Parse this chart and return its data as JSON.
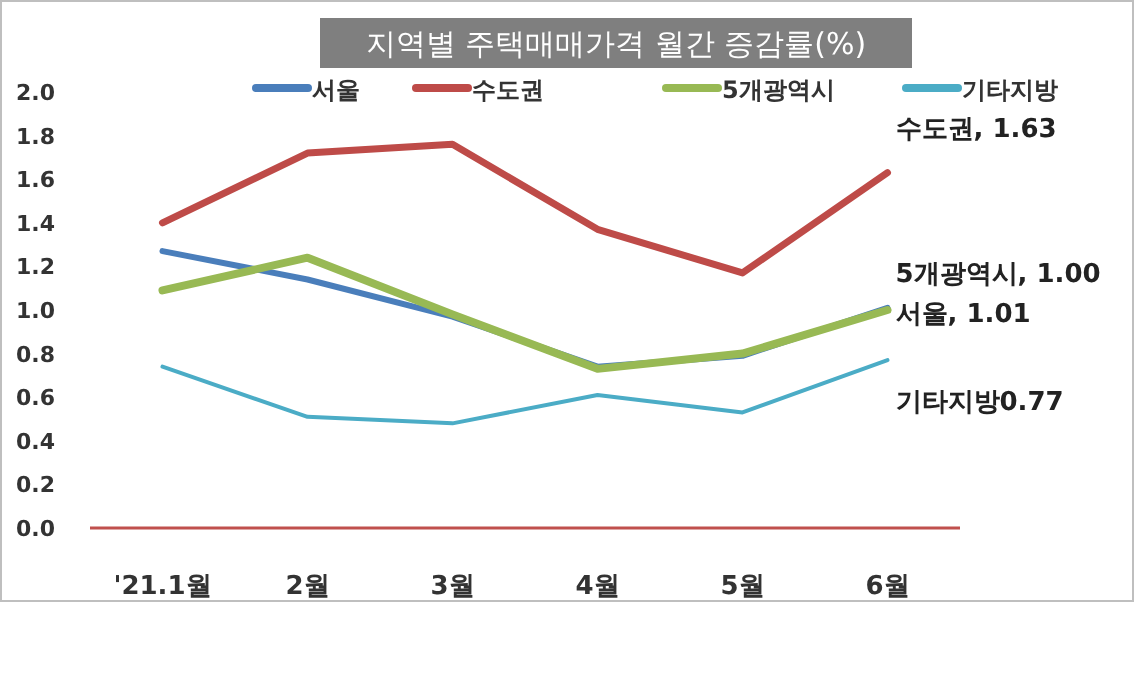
{
  "chart_data": {
    "type": "line",
    "title": "지역별 주택매매가격 월간 증감률(%)",
    "categories": [
      "'21.1월",
      "2월",
      "3월",
      "4월",
      "5월",
      "6월"
    ],
    "series": [
      {
        "name": "서울",
        "color": "#4a7ebb",
        "values": [
          1.27,
          1.14,
          0.97,
          0.74,
          0.79,
          1.01
        ]
      },
      {
        "name": "수도권",
        "color": "#be4b48",
        "values": [
          1.4,
          1.72,
          1.76,
          1.37,
          1.17,
          1.63
        ]
      },
      {
        "name": "5개광역시",
        "color": "#98b954",
        "values": [
          1.09,
          1.24,
          0.98,
          0.73,
          0.8,
          1.0
        ]
      },
      {
        "name": "기타지방",
        "color": "#4bacc6",
        "values": [
          0.74,
          0.51,
          0.48,
          0.61,
          0.53,
          0.77
        ]
      }
    ],
    "ylim": [
      0,
      2.0
    ],
    "yticks": [
      {
        "value": 0,
        "label": "0.0"
      },
      {
        "value": 0.2,
        "label": "0.2"
      },
      {
        "value": 0.4,
        "label": "0.4"
      },
      {
        "value": 0.6,
        "label": "0.6"
      },
      {
        "value": 0.8,
        "label": "0.8"
      },
      {
        "value": 1.0,
        "label": "1.0"
      },
      {
        "value": 1.2,
        "label": "1.2"
      },
      {
        "value": 1.4,
        "label": "1.4"
      },
      {
        "value": 1.6,
        "label": "1.6"
      },
      {
        "value": 1.8,
        "label": "1.8"
      },
      {
        "value": 2.0,
        "label": "2.0"
      }
    ],
    "grid": false,
    "legend": "top",
    "marker": "none",
    "line_style": "solid",
    "annotations": [
      {
        "text": "수도권, 1.63",
        "x": "6월",
        "y": 1.63
      },
      {
        "text": "5개광역시, 1.00",
        "x": "6월",
        "y": 1.0
      },
      {
        "text": "서울, 1.01",
        "x": "6월",
        "y": 1.01
      },
      {
        "text": "기타지방0.77",
        "x": "6월",
        "y": 0.77
      }
    ]
  }
}
